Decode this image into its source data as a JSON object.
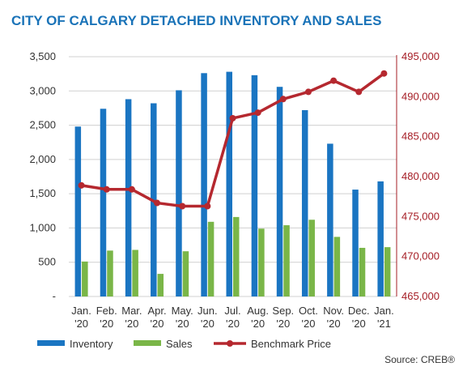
{
  "chart_data": {
    "type": "bar",
    "title": "CITY OF CALGARY DETACHED INVENTORY AND SALES",
    "source": "Source: CREB®",
    "categories": [
      [
        "Jan.",
        "'20"
      ],
      [
        "Feb.",
        "'20"
      ],
      [
        "Mar.",
        "'20"
      ],
      [
        "Apr.",
        "'20"
      ],
      [
        "May.",
        "'20"
      ],
      [
        "Jun.",
        "'20"
      ],
      [
        "Jul.",
        "'20"
      ],
      [
        "Aug.",
        "'20"
      ],
      [
        "Sep.",
        "'20"
      ],
      [
        "Oct.",
        "'20"
      ],
      [
        "Nov.",
        "'20"
      ],
      [
        "Dec.",
        "'20"
      ],
      [
        "Jan.",
        "'21"
      ]
    ],
    "left_axis": {
      "ylim": [
        0,
        3500
      ],
      "ticks": [
        "-",
        "500",
        "1,000",
        "1,500",
        "2,000",
        "2,500",
        "3,000",
        "3,500"
      ]
    },
    "right_axis": {
      "ylim": [
        465000,
        495000
      ],
      "ticks": [
        "465,000",
        "470,000",
        "475,000",
        "480,000",
        "485,000",
        "490,000",
        "495,000"
      ]
    },
    "grid": true,
    "legend_position": "bottom",
    "series": [
      {
        "name": "Inventory",
        "kind": "bar",
        "axis": "left",
        "color": "#1a75c2",
        "values": [
          2480,
          2740,
          2880,
          2820,
          3010,
          3260,
          3280,
          3230,
          3060,
          2720,
          2230,
          1560,
          1680
        ]
      },
      {
        "name": "Sales",
        "kind": "bar",
        "axis": "left",
        "color": "#7ab648",
        "values": [
          510,
          670,
          680,
          330,
          660,
          1090,
          1160,
          990,
          1040,
          1120,
          870,
          710,
          720
        ]
      },
      {
        "name": "Benchmark Price",
        "kind": "line",
        "axis": "right",
        "color": "#b5282f",
        "values": [
          478900,
          478400,
          478400,
          476700,
          476300,
          476300,
          487300,
          488000,
          489700,
          490600,
          492000,
          490600,
          492900
        ]
      }
    ]
  }
}
